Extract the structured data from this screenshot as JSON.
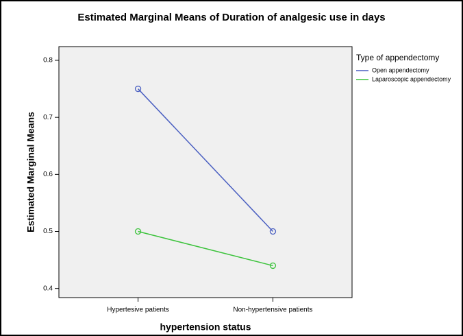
{
  "chart_data": {
    "type": "line",
    "title": "Estimated Marginal Means of Duration of analgesic use in days",
    "x_label": "hypertension status",
    "y_label": "Estimated Marginal Means",
    "legend_title": "Type of appendectomy",
    "legend_position": "right",
    "categories": [
      "Hypertesive patients",
      "Non-hypertensive patients"
    ],
    "series": [
      {
        "name": "Open appendectomy",
        "color": "#4a5fc1",
        "values": [
          0.75,
          0.5
        ]
      },
      {
        "name": "Laparoscopic appendectomy",
        "color": "#3cc33c",
        "values": [
          0.5,
          0.44
        ]
      }
    ],
    "ylim": [
      0.384,
      0.824
    ],
    "yticks": [
      0.4,
      0.5,
      0.6,
      0.7,
      0.8
    ]
  }
}
